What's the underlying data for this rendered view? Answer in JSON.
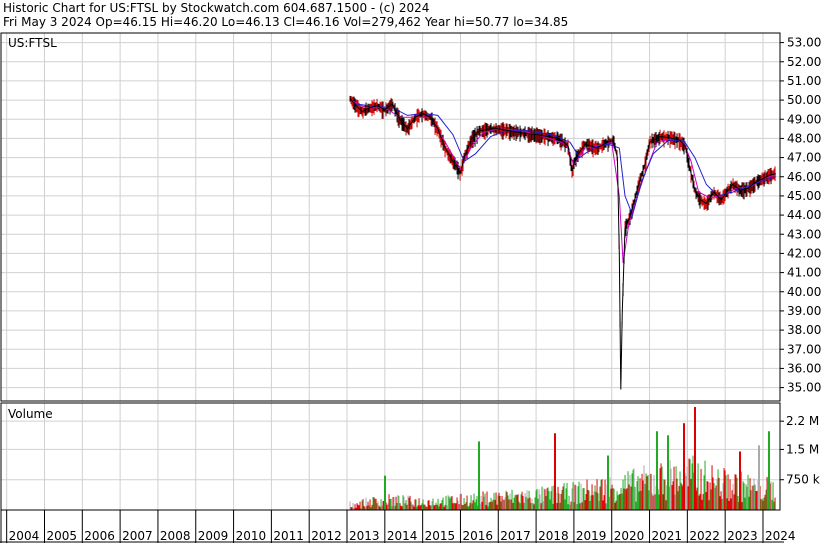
{
  "header": {
    "line1": "Historic Chart for US:FTSL by Stockwatch.com 604.687.1500 - (c) 2024",
    "line2": "Fri May  3 2024   Op=46.15   Hi=46.20   Lo=46.13   Cl=46.16   Vol=279,462   Year hi=50.77   lo=34.85"
  },
  "colors": {
    "price_up": "#cc0000",
    "price_down": "#000000",
    "ma_short": "#cc00cc",
    "ma_long": "#2222cc",
    "vol_up": "#22aa22",
    "vol_down": "#dd0000",
    "vol_flat": "#aaaaaa",
    "grid": "#d0d0d0",
    "frame": "#000000"
  },
  "chart_data": [
    {
      "type": "line",
      "label": "US:FTSL",
      "ylim": [
        34.3,
        53.5
      ],
      "y_ticks": [
        "53.00",
        "52.00",
        "51.00",
        "50.00",
        "49.00",
        "48.00",
        "47.00",
        "46.00",
        "45.00",
        "44.00",
        "43.00",
        "42.00",
        "41.00",
        "40.00",
        "39.00",
        "38.00",
        "37.00",
        "36.00",
        "35.00"
      ],
      "x_ticks": [
        "2004",
        "2005",
        "2006",
        "2007",
        "2008",
        "2009",
        "2010",
        "2011",
        "2012",
        "2013",
        "2014",
        "2015",
        "2016",
        "2017",
        "2018",
        "2019",
        "2020",
        "2021",
        "2022",
        "2023",
        "2024"
      ],
      "grid": true,
      "series": [
        {
          "key": "price",
          "x": [
            2013.08,
            2013.2,
            2013.4,
            2013.6,
            2013.8,
            2014.0,
            2014.2,
            2014.4,
            2014.6,
            2014.8,
            2015.0,
            2015.2,
            2015.4,
            2015.6,
            2015.8,
            2016.0,
            2016.1,
            2016.3,
            2016.5,
            2016.8,
            2017.0,
            2017.3,
            2017.6,
            2018.0,
            2018.3,
            2018.6,
            2018.85,
            2018.95,
            2019.05,
            2019.3,
            2019.6,
            2019.9,
            2020.05,
            2020.15,
            2020.2,
            2020.24,
            2020.28,
            2020.35,
            2020.5,
            2020.7,
            2020.9,
            2021.0,
            2021.3,
            2021.6,
            2021.8,
            2021.95,
            2022.05,
            2022.2,
            2022.35,
            2022.5,
            2022.7,
            2022.9,
            2023.0,
            2023.2,
            2023.4,
            2023.6,
            2023.8,
            2024.0,
            2024.2,
            2024.34
          ],
          "y": [
            50.1,
            49.8,
            49.4,
            49.6,
            49.7,
            49.5,
            49.8,
            49.0,
            48.5,
            49.1,
            49.3,
            49.1,
            48.5,
            47.5,
            46.8,
            46.2,
            47.0,
            48.0,
            48.4,
            48.5,
            48.5,
            48.4,
            48.3,
            48.2,
            48.1,
            48.0,
            47.6,
            46.3,
            47.0,
            47.7,
            47.5,
            47.8,
            47.9,
            47.0,
            42.0,
            34.9,
            39.0,
            43.3,
            44.0,
            45.5,
            46.8,
            47.8,
            48.1,
            48.0,
            47.9,
            47.6,
            46.6,
            45.3,
            44.8,
            44.6,
            45.2,
            44.8,
            45.1,
            45.6,
            45.3,
            45.4,
            45.7,
            45.9,
            46.1,
            46.16
          ]
        },
        {
          "key": "ma_short",
          "x": [
            2013.1,
            2013.5,
            2014.0,
            2014.4,
            2014.8,
            2015.2,
            2015.6,
            2016.0,
            2016.3,
            2016.6,
            2017.0,
            2017.6,
            2018.2,
            2018.8,
            2019.0,
            2019.3,
            2019.6,
            2020.0,
            2020.2,
            2020.3,
            2020.45,
            2020.6,
            2020.9,
            2021.2,
            2021.6,
            2021.9,
            2022.1,
            2022.3,
            2022.6,
            2022.9,
            2023.3,
            2023.7,
            2024.0,
            2024.34
          ],
          "y": [
            50.0,
            49.6,
            49.6,
            49.1,
            49.1,
            49.1,
            47.8,
            46.4,
            47.6,
            48.3,
            48.5,
            48.4,
            48.1,
            47.7,
            46.6,
            47.5,
            47.6,
            47.8,
            45.0,
            41.5,
            43.5,
            44.5,
            46.3,
            47.8,
            48.0,
            47.8,
            46.8,
            45.2,
            44.9,
            45.0,
            45.4,
            45.5,
            45.9,
            46.1
          ]
        },
        {
          "key": "ma_long",
          "x": [
            2013.2,
            2013.6,
            2014.2,
            2014.6,
            2015.0,
            2015.4,
            2015.8,
            2016.1,
            2016.4,
            2016.8,
            2017.2,
            2017.8,
            2018.4,
            2018.9,
            2019.15,
            2019.5,
            2019.9,
            2020.2,
            2020.35,
            2020.55,
            2020.8,
            2021.1,
            2021.5,
            2021.9,
            2022.2,
            2022.5,
            2022.8,
            2023.2,
            2023.6,
            2024.0,
            2024.34
          ],
          "y": [
            49.8,
            49.7,
            49.6,
            49.2,
            49.3,
            49.2,
            48.2,
            46.8,
            47.2,
            48.1,
            48.4,
            48.4,
            48.2,
            47.8,
            47.0,
            47.5,
            47.7,
            47.5,
            45.0,
            44.0,
            45.8,
            47.2,
            47.9,
            47.9,
            47.0,
            45.6,
            45.0,
            45.2,
            45.5,
            45.8,
            46.0
          ]
        }
      ]
    },
    {
      "type": "bar",
      "label": "Volume",
      "ylim": [
        0,
        2650000
      ],
      "y_ticks": [
        "2.2 M",
        "1.5 M",
        "750 k"
      ],
      "x_range": [
        2013.08,
        2024.34
      ],
      "series": [
        {
          "key": "volume_profile",
          "x": [
            2013.0,
            2014.0,
            2015.0,
            2016.0,
            2017.0,
            2018.0,
            2019.0,
            2020.0,
            2021.0,
            2022.0,
            2023.0,
            2024.3
          ],
          "y": [
            150000,
            300000,
            250000,
            300000,
            380000,
            420000,
            520000,
            680000,
            850000,
            1050000,
            780000,
            600000
          ]
        }
      ],
      "peaks": [
        {
          "x": 2014.0,
          "y": 850000,
          "dir": "up"
        },
        {
          "x": 2016.5,
          "y": 1700000,
          "dir": "up"
        },
        {
          "x": 2018.5,
          "y": 1900000,
          "dir": "down"
        },
        {
          "x": 2019.9,
          "y": 1350000,
          "dir": "up"
        },
        {
          "x": 2021.2,
          "y": 1950000,
          "dir": "up"
        },
        {
          "x": 2021.5,
          "y": 1850000,
          "dir": "up"
        },
        {
          "x": 2021.9,
          "y": 2150000,
          "dir": "down"
        },
        {
          "x": 2022.2,
          "y": 2550000,
          "dir": "down"
        },
        {
          "x": 2023.4,
          "y": 1450000,
          "dir": "down"
        },
        {
          "x": 2023.9,
          "y": 1600000,
          "dir": "flat"
        },
        {
          "x": 2024.15,
          "y": 1950000,
          "dir": "up"
        }
      ]
    }
  ]
}
